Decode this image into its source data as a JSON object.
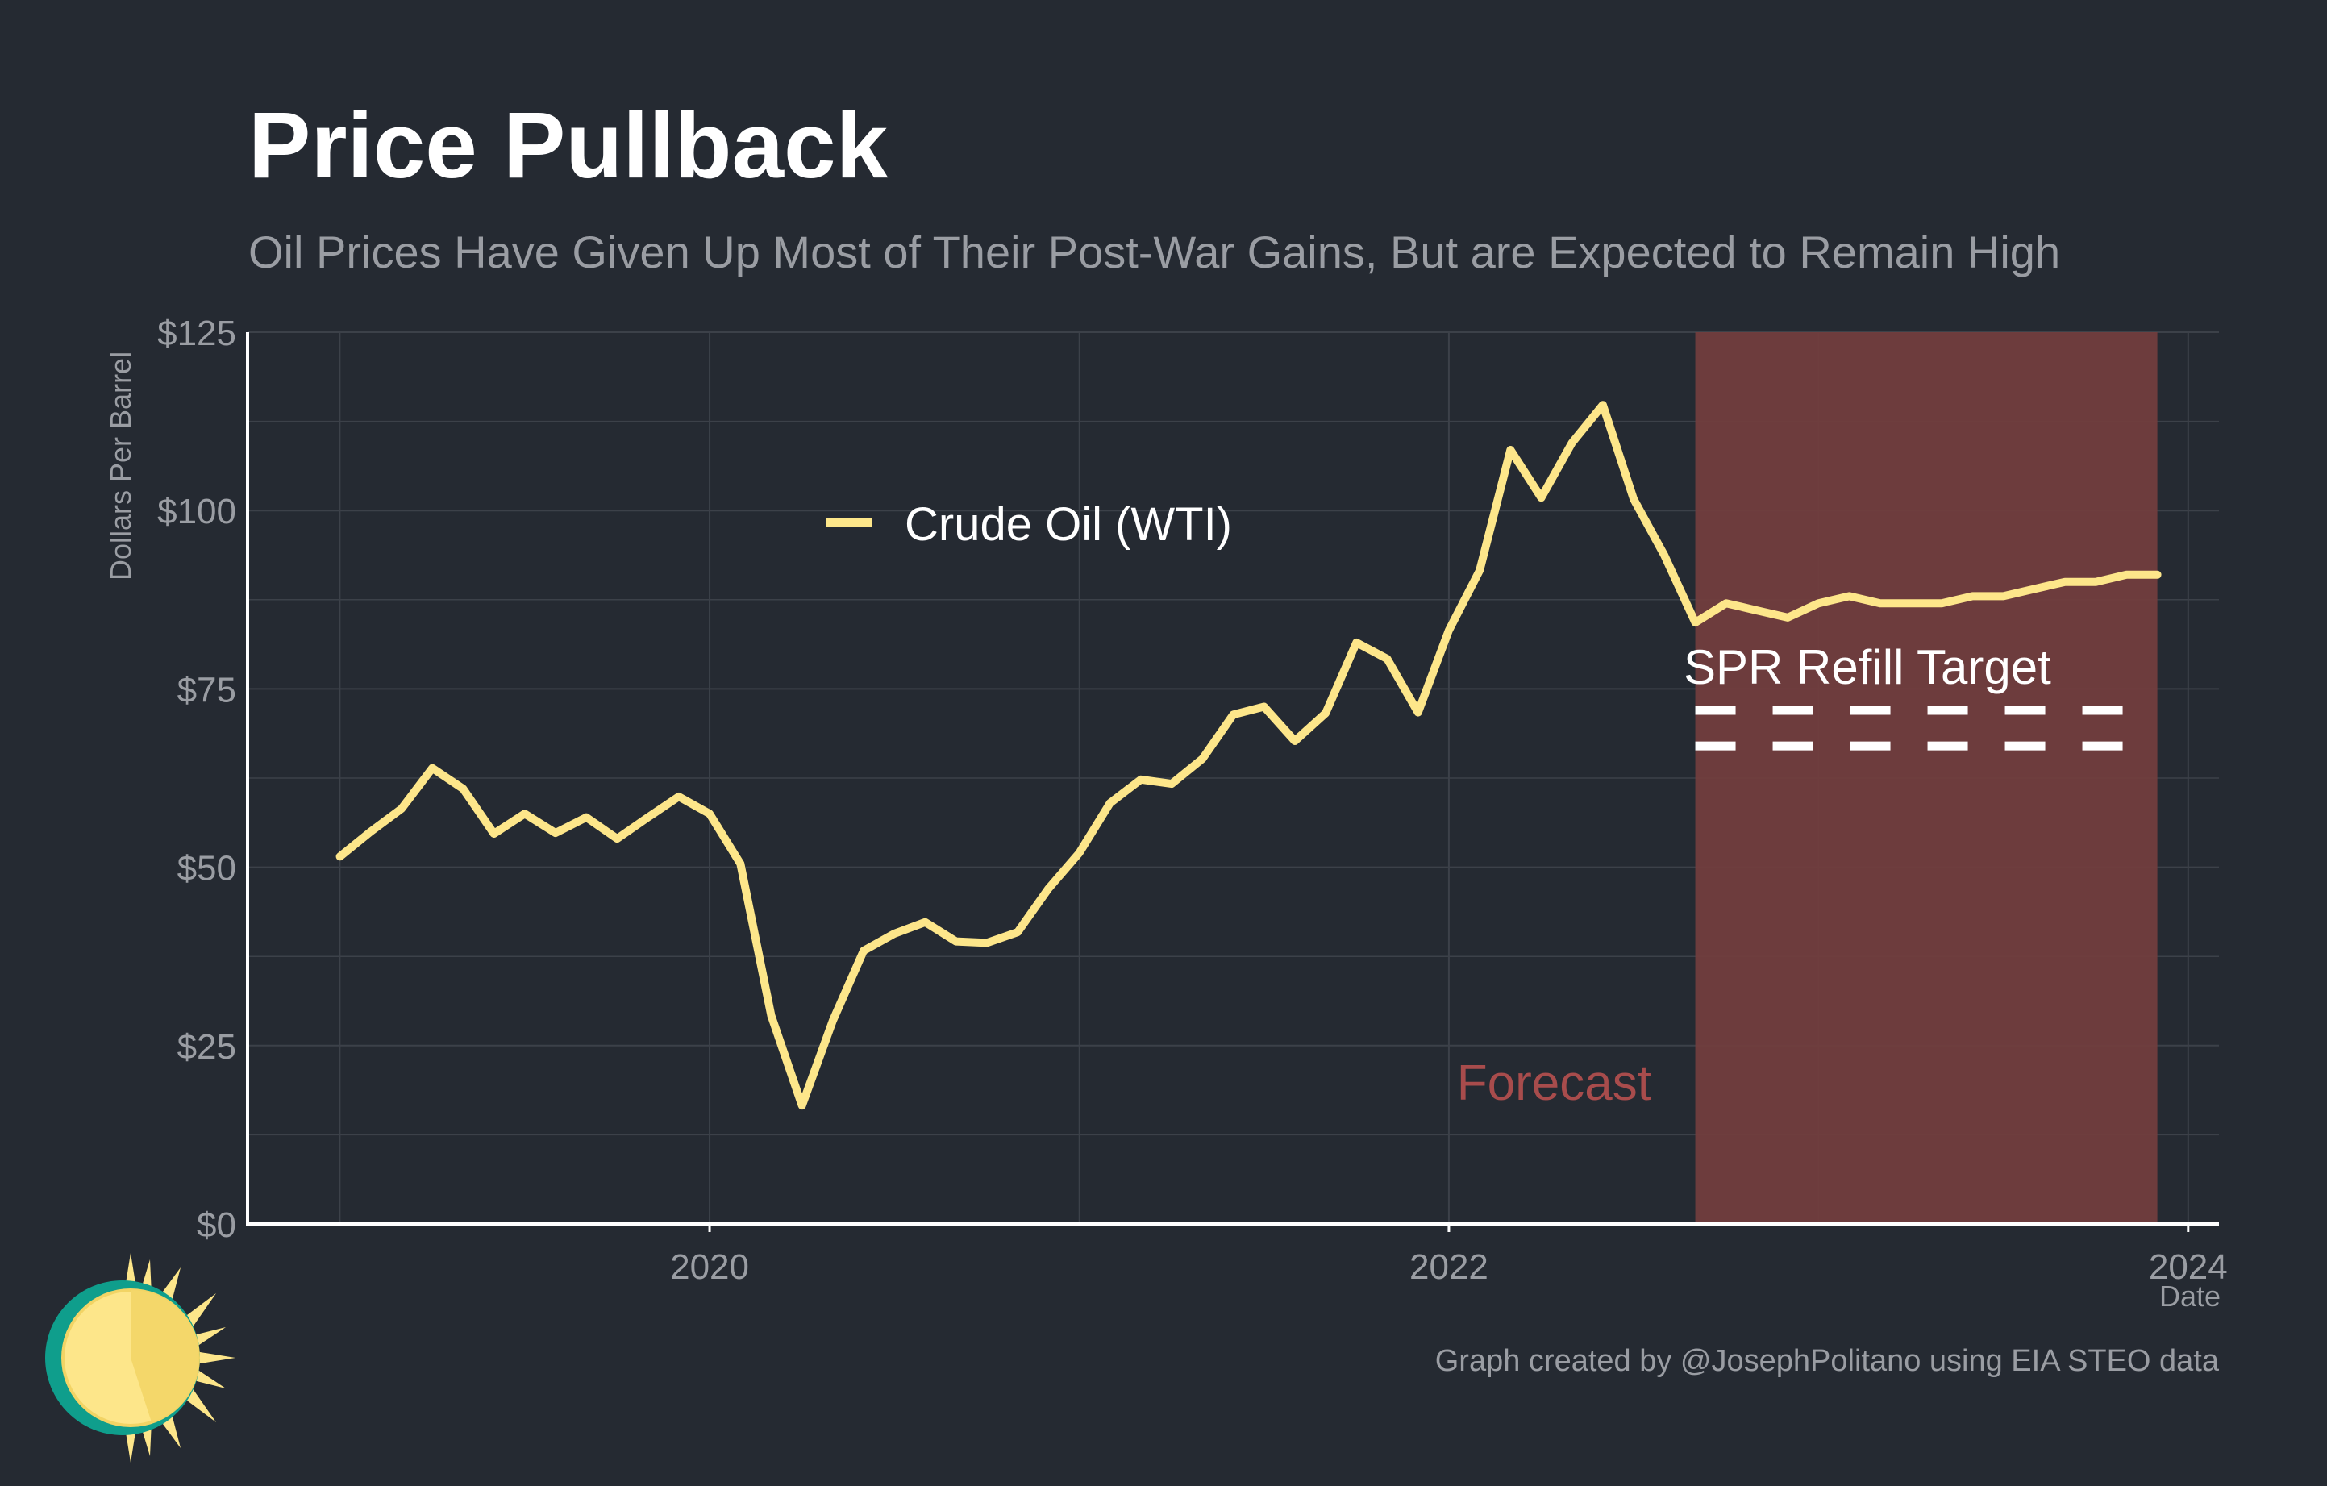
{
  "title": "Price Pullback",
  "subtitle": "Oil Prices Have Given Up Most of Their Post-War Gains, But are Expected to Remain High",
  "caption": "Graph created by @JosephPolitano using EIA STEO data",
  "colors": {
    "background": "#252a32",
    "line": "#fde68a",
    "forecast_band": "#733e3e",
    "forecast_text": "#a84c4c",
    "grid": "#3c4149",
    "axis": "#ffffff",
    "logo_sun": "#fde68a",
    "logo_ring": "#0f9e8c"
  },
  "chart_data": {
    "type": "line",
    "xlabel": "Date",
    "ylabel": "Dollars Per Barrel",
    "x_ticks": [
      "2020",
      "2022",
      "2024"
    ],
    "y_ticks": [
      "$0",
      "$25",
      "$50",
      "$75",
      "$100",
      "$125"
    ],
    "y_tick_values": [
      0,
      25,
      50,
      75,
      100,
      125
    ],
    "ylim": [
      0,
      125
    ],
    "xlim": [
      "2018-10",
      "2024-02"
    ],
    "grid": true,
    "legend_position": "top-left",
    "series": [
      {
        "name": "Crude Oil (WTI)",
        "color": "#fde68a",
        "points": [
          [
            "2019-01",
            51.5
          ],
          [
            "2019-02",
            55.0
          ],
          [
            "2019-03",
            58.2
          ],
          [
            "2019-04",
            63.9
          ],
          [
            "2019-05",
            61.0
          ],
          [
            "2019-06",
            54.7
          ],
          [
            "2019-07",
            57.5
          ],
          [
            "2019-08",
            54.8
          ],
          [
            "2019-09",
            57.0
          ],
          [
            "2019-10",
            54.0
          ],
          [
            "2019-11",
            57.0
          ],
          [
            "2019-12",
            59.9
          ],
          [
            "2020-01",
            57.5
          ],
          [
            "2020-02",
            50.5
          ],
          [
            "2020-03",
            29.2
          ],
          [
            "2020-04",
            16.6
          ],
          [
            "2020-05",
            28.5
          ],
          [
            "2020-06",
            38.3
          ],
          [
            "2020-07",
            40.7
          ],
          [
            "2020-08",
            42.3
          ],
          [
            "2020-09",
            39.6
          ],
          [
            "2020-10",
            39.4
          ],
          [
            "2020-11",
            40.9
          ],
          [
            "2020-12",
            47.0
          ],
          [
            "2021-01",
            52.0
          ],
          [
            "2021-02",
            59.0
          ],
          [
            "2021-03",
            62.3
          ],
          [
            "2021-04",
            61.7
          ],
          [
            "2021-05",
            65.2
          ],
          [
            "2021-06",
            71.4
          ],
          [
            "2021-07",
            72.5
          ],
          [
            "2021-08",
            67.7
          ],
          [
            "2021-09",
            71.6
          ],
          [
            "2021-10",
            81.5
          ],
          [
            "2021-11",
            79.2
          ],
          [
            "2021-12",
            71.7
          ],
          [
            "2022-01",
            83.2
          ],
          [
            "2022-02",
            91.6
          ],
          [
            "2022-03",
            108.5
          ],
          [
            "2022-04",
            101.8
          ],
          [
            "2022-05",
            109.5
          ],
          [
            "2022-06",
            114.8
          ],
          [
            "2022-07",
            101.6
          ],
          [
            "2022-08",
            93.7
          ],
          [
            "2022-09",
            84.3
          ],
          [
            "2022-10",
            87.0
          ],
          [
            "2022-11",
            86.0
          ],
          [
            "2022-12",
            85.0
          ],
          [
            "2023-01",
            87.0
          ],
          [
            "2023-02",
            88.0
          ],
          [
            "2023-03",
            87.0
          ],
          [
            "2023-04",
            87.0
          ],
          [
            "2023-05",
            87.0
          ],
          [
            "2023-06",
            88.0
          ],
          [
            "2023-07",
            88.0
          ],
          [
            "2023-08",
            89.0
          ],
          [
            "2023-09",
            90.0
          ],
          [
            "2023-10",
            90.0
          ],
          [
            "2023-11",
            91.0
          ],
          [
            "2023-12",
            91.0
          ]
        ]
      }
    ],
    "annotations": {
      "forecast_label": "Forecast",
      "forecast_start": "2022-09",
      "forecast_end": "2023-12",
      "spr_label": "SPR Refill Target",
      "spr_range": [
        67,
        72
      ]
    }
  }
}
